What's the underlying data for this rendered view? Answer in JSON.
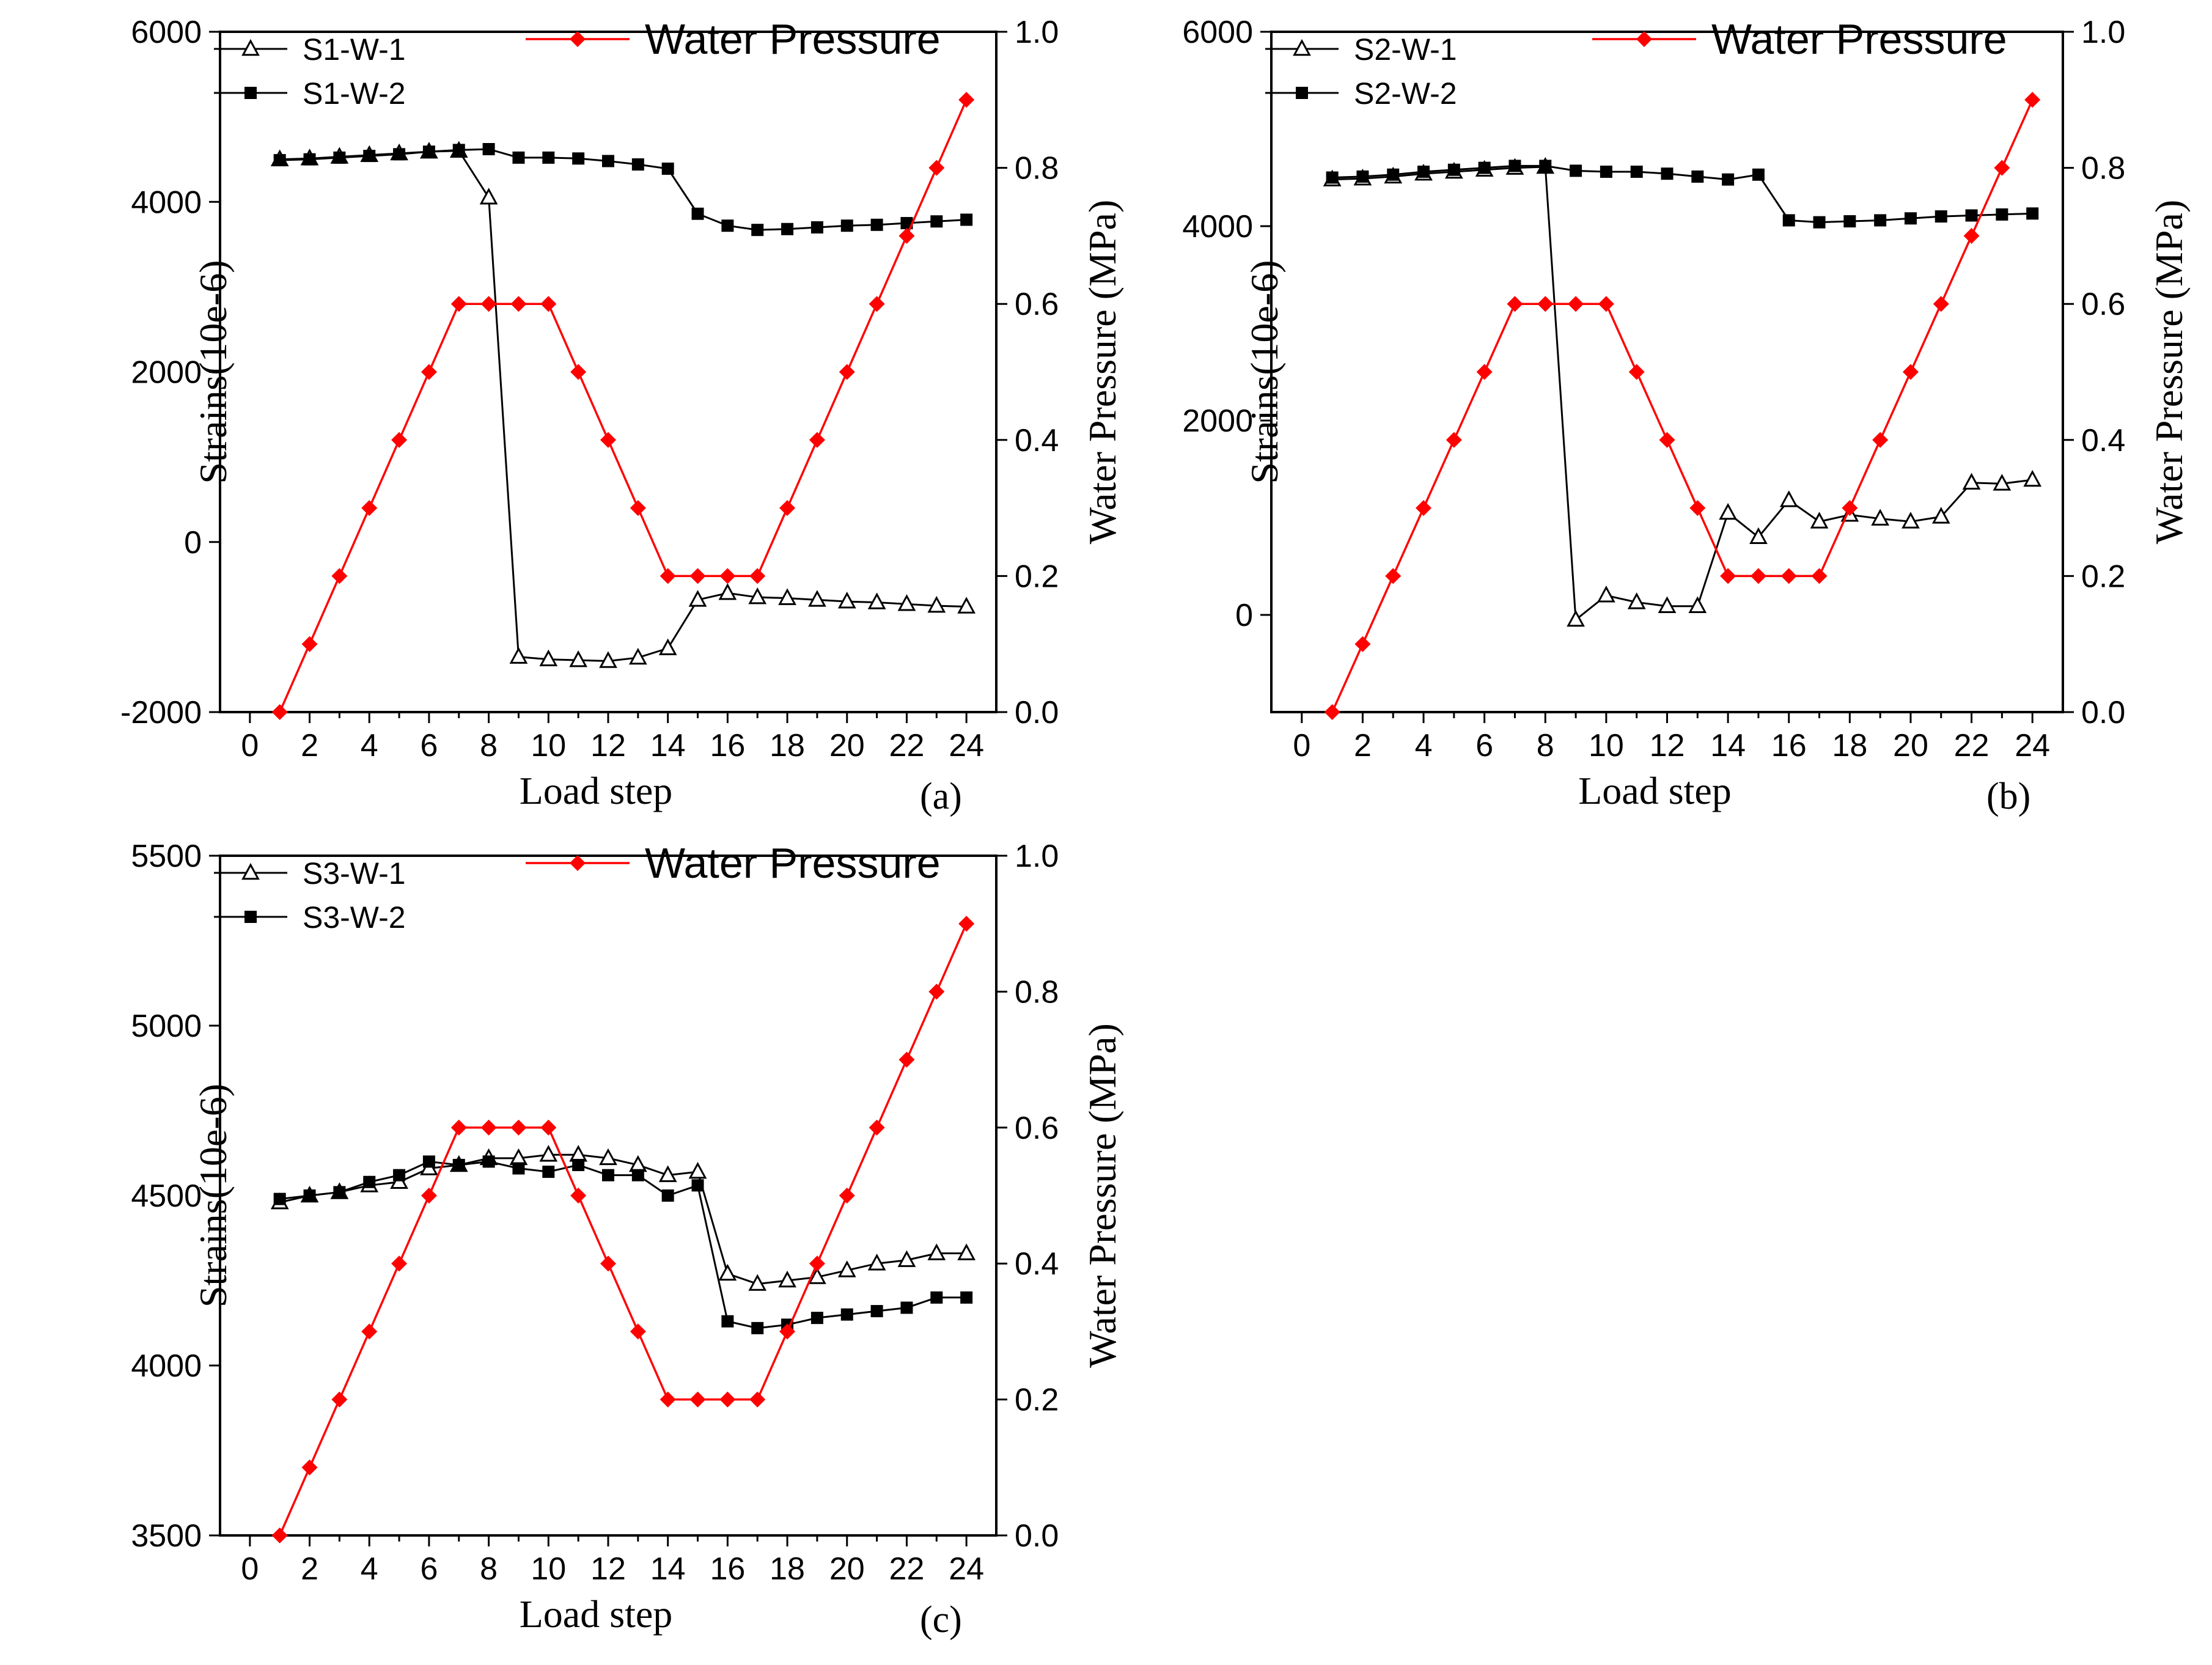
{
  "chart_data": [
    {
      "type": "line",
      "panel": "(a)",
      "xlabel": "Load step",
      "ylabel": "Strains(10e-6)",
      "y2label": "Water Pressure (MPa)",
      "xlim": [
        -1,
        25
      ],
      "xticks": [
        0,
        2,
        4,
        6,
        8,
        10,
        12,
        14,
        16,
        18,
        20,
        22,
        24
      ],
      "ylim": [
        -2000,
        6000
      ],
      "yticks": [
        -2000,
        0,
        2000,
        4000,
        6000
      ],
      "y2lim": [
        0.0,
        1.0
      ],
      "y2ticks": [
        "0.0",
        "0.2",
        "0.4",
        "0.6",
        "0.8",
        "1.0"
      ],
      "x": [
        1,
        2,
        3,
        4,
        5,
        6,
        7,
        8,
        9,
        10,
        11,
        12,
        13,
        14,
        15,
        16,
        17,
        18,
        19,
        20,
        21,
        22,
        23,
        24
      ],
      "series": [
        {
          "name": "S1-W-1",
          "axis": "left",
          "marker": "open-triangle",
          "color": "#000000",
          "values": [
            4500,
            4510,
            4530,
            4550,
            4570,
            4590,
            4600,
            4050,
            -1350,
            -1380,
            -1390,
            -1400,
            -1360,
            -1250,
            -680,
            -600,
            -650,
            -660,
            -680,
            -700,
            -710,
            -730,
            -750,
            -760
          ]
        },
        {
          "name": "S1-W-2",
          "axis": "left",
          "marker": "filled-square",
          "color": "#000000",
          "values": [
            4490,
            4500,
            4520,
            4540,
            4560,
            4590,
            4610,
            4620,
            4520,
            4520,
            4510,
            4480,
            4440,
            4390,
            3860,
            3720,
            3670,
            3680,
            3700,
            3720,
            3730,
            3750,
            3770,
            3790
          ]
        },
        {
          "name": "Water Pressure",
          "axis": "right",
          "marker": "filled-diamond",
          "color": "#ff0000",
          "values": [
            0.0,
            0.1,
            0.2,
            0.3,
            0.4,
            0.5,
            0.6,
            0.6,
            0.6,
            0.6,
            0.5,
            0.4,
            0.3,
            0.2,
            0.2,
            0.2,
            0.2,
            0.3,
            0.4,
            0.5,
            0.6,
            0.7,
            0.8,
            0.9
          ]
        }
      ]
    },
    {
      "type": "line",
      "panel": "(b)",
      "xlabel": "Load step",
      "ylabel": "Strains(10e-6)",
      "y2label": "Water Pressure (MPa)",
      "xlim": [
        -1,
        25
      ],
      "xticks": [
        0,
        2,
        4,
        6,
        8,
        10,
        12,
        14,
        16,
        18,
        20,
        22,
        24
      ],
      "ylim": [
        -1000,
        6000
      ],
      "yticks": [
        0,
        2000,
        4000,
        6000
      ],
      "y2lim": [
        0.0,
        1.0
      ],
      "y2ticks": [
        "0.0",
        "0.2",
        "0.4",
        "0.6",
        "0.8",
        "1.0"
      ],
      "x": [
        1,
        2,
        3,
        4,
        5,
        6,
        7,
        8,
        9,
        10,
        11,
        12,
        13,
        14,
        15,
        16,
        17,
        18,
        19,
        20,
        21,
        22,
        23,
        24
      ],
      "series": [
        {
          "name": "S2-W-1",
          "axis": "left",
          "marker": "open-triangle",
          "color": "#000000",
          "values": [
            4480,
            4490,
            4510,
            4540,
            4560,
            4580,
            4600,
            4610,
            -50,
            200,
            130,
            90,
            90,
            1050,
            800,
            1180,
            960,
            1030,
            990,
            960,
            1010,
            1360,
            1350,
            1390
          ]
        },
        {
          "name": "S2-W-2",
          "axis": "left",
          "marker": "filled-square",
          "color": "#000000",
          "values": [
            4500,
            4510,
            4530,
            4560,
            4580,
            4600,
            4620,
            4620,
            4570,
            4560,
            4560,
            4540,
            4510,
            4480,
            4530,
            4060,
            4040,
            4050,
            4060,
            4080,
            4100,
            4110,
            4120,
            4130
          ]
        },
        {
          "name": "Water Pressure",
          "axis": "right",
          "marker": "filled-diamond",
          "color": "#ff0000",
          "values": [
            0.0,
            0.1,
            0.2,
            0.3,
            0.4,
            0.5,
            0.6,
            0.6,
            0.6,
            0.6,
            0.5,
            0.4,
            0.3,
            0.2,
            0.2,
            0.2,
            0.2,
            0.3,
            0.4,
            0.5,
            0.6,
            0.7,
            0.8,
            0.9
          ]
        }
      ]
    },
    {
      "type": "line",
      "panel": "(c)",
      "xlabel": "Load step",
      "ylabel": "Strains(10e-6)",
      "y2label": "Water Pressure (MPa)",
      "xlim": [
        -1,
        25
      ],
      "xticks": [
        0,
        2,
        4,
        6,
        8,
        10,
        12,
        14,
        16,
        18,
        20,
        22,
        24
      ],
      "ylim": [
        3500,
        5500
      ],
      "yticks": [
        3500,
        4000,
        4500,
        5000,
        5500
      ],
      "y2lim": [
        0.0,
        1.0
      ],
      "y2ticks": [
        "0.0",
        "0.2",
        "0.4",
        "0.6",
        "0.8",
        "1.0"
      ],
      "x": [
        1,
        2,
        3,
        4,
        5,
        6,
        7,
        8,
        9,
        10,
        11,
        12,
        13,
        14,
        15,
        16,
        17,
        18,
        19,
        20,
        21,
        22,
        23,
        24
      ],
      "series": [
        {
          "name": "S3-W-1",
          "axis": "left",
          "marker": "open-triangle",
          "color": "#000000",
          "values": [
            4480,
            4500,
            4510,
            4530,
            4540,
            4580,
            4590,
            4610,
            4610,
            4620,
            4620,
            4610,
            4590,
            4560,
            4570,
            4270,
            4240,
            4250,
            4260,
            4280,
            4300,
            4310,
            4330,
            4330
          ]
        },
        {
          "name": "S3-W-2",
          "axis": "left",
          "marker": "filled-square",
          "color": "#000000",
          "values": [
            4490,
            4500,
            4510,
            4540,
            4560,
            4600,
            4590,
            4600,
            4580,
            4570,
            4590,
            4560,
            4560,
            4500,
            4530,
            4130,
            4110,
            4120,
            4140,
            4150,
            4160,
            4170,
            4200,
            4200
          ]
        },
        {
          "name": "Water Pressure",
          "axis": "right",
          "marker": "filled-diamond",
          "color": "#ff0000",
          "values": [
            0.0,
            0.1,
            0.2,
            0.3,
            0.4,
            0.5,
            0.6,
            0.6,
            0.6,
            0.6,
            0.5,
            0.4,
            0.3,
            0.2,
            0.2,
            0.2,
            0.2,
            0.3,
            0.4,
            0.5,
            0.6,
            0.7,
            0.8,
            0.9
          ]
        }
      ]
    }
  ]
}
